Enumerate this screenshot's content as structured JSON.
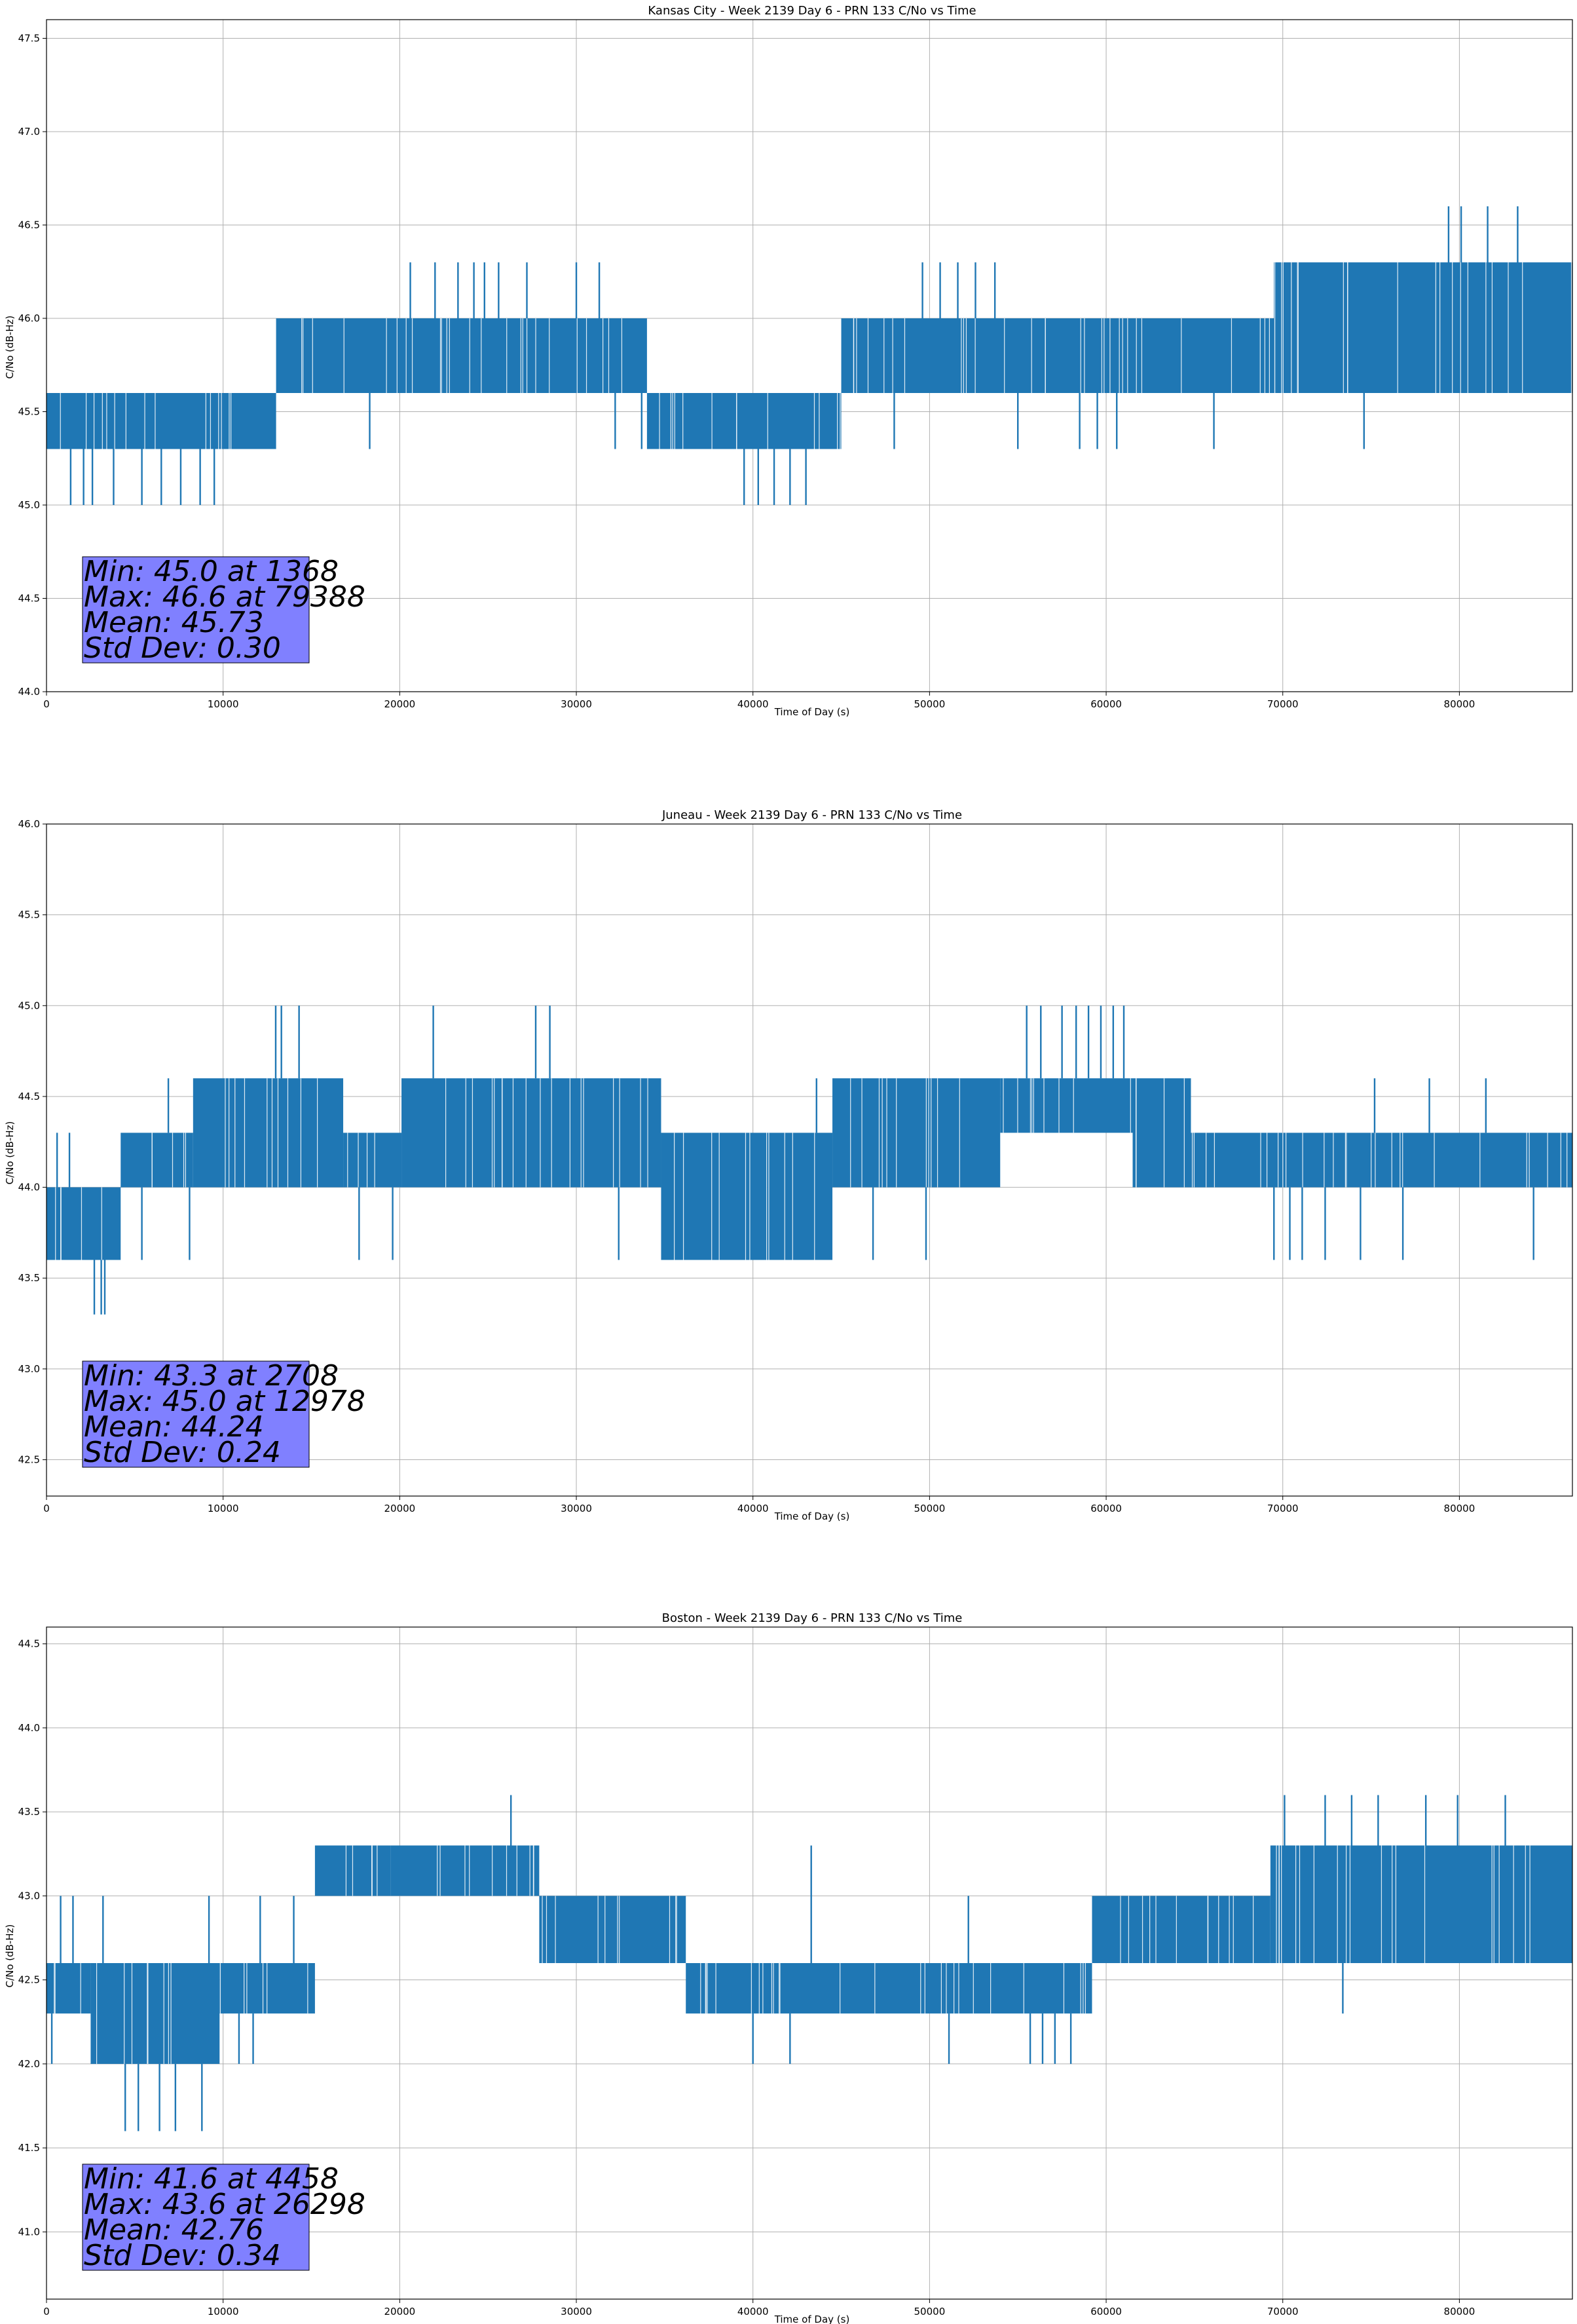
{
  "chart_data": [
    {
      "type": "line",
      "title": "Kansas City - Week 2139 Day 6 - PRN 133 C/No vs Time",
      "xlabel": "Time of Day (s)",
      "ylabel": "C/No (dB-Hz)",
      "xlim": [
        0,
        86400
      ],
      "ylim": [
        44.0,
        47.6
      ],
      "xticks": [
        0,
        10000,
        20000,
        30000,
        40000,
        50000,
        60000,
        70000,
        80000
      ],
      "yticks": [
        "44.0",
        "44.5",
        "45.0",
        "45.5",
        "46.0",
        "46.5",
        "47.0",
        "47.5"
      ],
      "grid": true,
      "color": "#1f77b4",
      "stats_box_color": "#8080ff",
      "stats": [
        "Min: 45.0 at 1368",
        "Max: 46.6 at 79388",
        "Mean: 45.73",
        "Std Dev: 0.30"
      ],
      "series": [
        {
          "name": "C/No",
          "segments": [
            {
              "x0": 0,
              "x1": 13000,
              "lo": 45.3,
              "hi": 45.6
            },
            {
              "x0": 13000,
              "x1": 34000,
              "lo": 45.6,
              "hi": 46.0
            },
            {
              "x0": 34000,
              "x1": 45000,
              "lo": 45.3,
              "hi": 45.6
            },
            {
              "x0": 45000,
              "x1": 69500,
              "lo": 45.6,
              "hi": 46.0
            },
            {
              "x0": 69500,
              "x1": 86400,
              "lo": 45.6,
              "hi": 46.3
            }
          ],
          "spikes_up": [
            {
              "x": 20600,
              "y": 46.3
            },
            {
              "x": 22000,
              "y": 46.3
            },
            {
              "x": 23300,
              "y": 46.3
            },
            {
              "x": 24200,
              "y": 46.3
            },
            {
              "x": 24800,
              "y": 46.3
            },
            {
              "x": 25600,
              "y": 46.3
            },
            {
              "x": 27200,
              "y": 46.3
            },
            {
              "x": 30000,
              "y": 46.3
            },
            {
              "x": 31300,
              "y": 46.3
            },
            {
              "x": 49600,
              "y": 46.3
            },
            {
              "x": 50600,
              "y": 46.3
            },
            {
              "x": 51600,
              "y": 46.3
            },
            {
              "x": 52600,
              "y": 46.3
            },
            {
              "x": 53700,
              "y": 46.3
            },
            {
              "x": 75100,
              "y": 46.3
            },
            {
              "x": 76600,
              "y": 46.3
            },
            {
              "x": 79388,
              "y": 46.6
            },
            {
              "x": 80100,
              "y": 46.6
            },
            {
              "x": 81600,
              "y": 46.6
            },
            {
              "x": 83300,
              "y": 46.6
            },
            {
              "x": 85000,
              "y": 46.3
            }
          ],
          "spikes_down": [
            {
              "x": 1368,
              "y": 45.0
            },
            {
              "x": 2100,
              "y": 45.0
            },
            {
              "x": 2600,
              "y": 45.0
            },
            {
              "x": 3800,
              "y": 45.0
            },
            {
              "x": 5400,
              "y": 45.0
            },
            {
              "x": 6500,
              "y": 45.0
            },
            {
              "x": 7600,
              "y": 45.0
            },
            {
              "x": 8700,
              "y": 45.0
            },
            {
              "x": 9500,
              "y": 45.0
            },
            {
              "x": 18300,
              "y": 45.3
            },
            {
              "x": 32200,
              "y": 45.3
            },
            {
              "x": 33700,
              "y": 45.3
            },
            {
              "x": 39500,
              "y": 45.0
            },
            {
              "x": 40300,
              "y": 45.0
            },
            {
              "x": 41200,
              "y": 45.0
            },
            {
              "x": 42100,
              "y": 45.0
            },
            {
              "x": 43000,
              "y": 45.0
            },
            {
              "x": 48000,
              "y": 45.3
            },
            {
              "x": 55000,
              "y": 45.3
            },
            {
              "x": 58500,
              "y": 45.3
            },
            {
              "x": 59500,
              "y": 45.3
            },
            {
              "x": 60600,
              "y": 45.3
            },
            {
              "x": 66100,
              "y": 45.3
            },
            {
              "x": 74600,
              "y": 45.3
            }
          ]
        }
      ]
    },
    {
      "type": "line",
      "title": "Juneau - Week 2139 Day 6 - PRN 133 C/No vs Time",
      "xlabel": "Time of Day (s)",
      "ylabel": "C/No (dB-Hz)",
      "xlim": [
        0,
        86400
      ],
      "ylim": [
        42.3,
        46.0
      ],
      "xticks": [
        0,
        10000,
        20000,
        30000,
        40000,
        50000,
        60000,
        70000,
        80000
      ],
      "yticks": [
        "42.5",
        "43.0",
        "43.5",
        "44.0",
        "44.5",
        "45.0",
        "45.5",
        "46.0"
      ],
      "grid": true,
      "color": "#1f77b4",
      "stats_box_color": "#8080ff",
      "stats": [
        "Min: 43.3 at 2708",
        "Max: 45.0 at 12978",
        "Mean: 44.24",
        "Std Dev: 0.24"
      ],
      "series": [
        {
          "name": "C/No",
          "segments": [
            {
              "x0": 0,
              "x1": 4200,
              "lo": 43.6,
              "hi": 44.0
            },
            {
              "x0": 4200,
              "x1": 8300,
              "lo": 44.0,
              "hi": 44.3
            },
            {
              "x0": 8300,
              "x1": 16800,
              "lo": 44.0,
              "hi": 44.6
            },
            {
              "x0": 16800,
              "x1": 20100,
              "lo": 44.0,
              "hi": 44.3
            },
            {
              "x0": 20100,
              "x1": 34800,
              "lo": 44.0,
              "hi": 44.6
            },
            {
              "x0": 34800,
              "x1": 40800,
              "lo": 43.6,
              "hi": 44.3
            },
            {
              "x0": 40800,
              "x1": 44500,
              "lo": 43.6,
              "hi": 44.3
            },
            {
              "x0": 44500,
              "x1": 54000,
              "lo": 44.0,
              "hi": 44.6
            },
            {
              "x0": 54000,
              "x1": 61500,
              "lo": 44.3,
              "hi": 44.6
            },
            {
              "x0": 61500,
              "x1": 64800,
              "lo": 44.0,
              "hi": 44.6
            },
            {
              "x0": 64800,
              "x1": 86400,
              "lo": 44.0,
              "hi": 44.3
            }
          ],
          "spikes_up": [
            {
              "x": 600,
              "y": 44.3
            },
            {
              "x": 1300,
              "y": 44.3
            },
            {
              "x": 6900,
              "y": 44.6
            },
            {
              "x": 12978,
              "y": 45.0
            },
            {
              "x": 13300,
              "y": 45.0
            },
            {
              "x": 14300,
              "y": 45.0
            },
            {
              "x": 21900,
              "y": 45.0
            },
            {
              "x": 27700,
              "y": 45.0
            },
            {
              "x": 28500,
              "y": 45.0
            },
            {
              "x": 43600,
              "y": 44.6
            },
            {
              "x": 55500,
              "y": 45.0
            },
            {
              "x": 56300,
              "y": 45.0
            },
            {
              "x": 57500,
              "y": 45.0
            },
            {
              "x": 58300,
              "y": 45.0
            },
            {
              "x": 59000,
              "y": 45.0
            },
            {
              "x": 59700,
              "y": 45.0
            },
            {
              "x": 60400,
              "y": 45.0
            },
            {
              "x": 61000,
              "y": 45.0
            },
            {
              "x": 75200,
              "y": 44.6
            },
            {
              "x": 78300,
              "y": 44.6
            },
            {
              "x": 81500,
              "y": 44.6
            }
          ],
          "spikes_down": [
            {
              "x": 2708,
              "y": 43.3
            },
            {
              "x": 3100,
              "y": 43.3
            },
            {
              "x": 3300,
              "y": 43.3
            },
            {
              "x": 5400,
              "y": 43.6
            },
            {
              "x": 8100,
              "y": 43.6
            },
            {
              "x": 17700,
              "y": 43.6
            },
            {
              "x": 19600,
              "y": 43.6
            },
            {
              "x": 32400,
              "y": 43.6
            },
            {
              "x": 38200,
              "y": 43.6
            },
            {
              "x": 43200,
              "y": 43.6
            },
            {
              "x": 46800,
              "y": 43.6
            },
            {
              "x": 49800,
              "y": 43.6
            },
            {
              "x": 69500,
              "y": 43.6
            },
            {
              "x": 70400,
              "y": 43.6
            },
            {
              "x": 71100,
              "y": 43.6
            },
            {
              "x": 72400,
              "y": 43.6
            },
            {
              "x": 74400,
              "y": 43.6
            },
            {
              "x": 76800,
              "y": 43.6
            },
            {
              "x": 84200,
              "y": 43.6
            }
          ]
        }
      ]
    },
    {
      "type": "line",
      "title": "Boston - Week 2139 Day 6 - PRN 133 C/No vs Time",
      "xlabel": "Time of Day (s)",
      "ylabel": "C/No (dB-Hz)",
      "xlim": [
        0,
        86400
      ],
      "ylim": [
        40.6,
        44.6
      ],
      "xticks": [
        0,
        10000,
        20000,
        30000,
        40000,
        50000,
        60000,
        70000,
        80000
      ],
      "yticks": [
        "41.0",
        "41.5",
        "42.0",
        "42.5",
        "43.0",
        "43.5",
        "44.0",
        "44.5"
      ],
      "grid": true,
      "color": "#1f77b4",
      "stats_box_color": "#8080ff",
      "stats": [
        "Min: 41.6 at 4458",
        "Max: 43.6 at 26298",
        "Mean: 42.76",
        "Std Dev: 0.34"
      ],
      "series": [
        {
          "name": "C/No",
          "segments": [
            {
              "x0": 0,
              "x1": 2500,
              "lo": 42.3,
              "hi": 42.6
            },
            {
              "x0": 2500,
              "x1": 9800,
              "lo": 42.0,
              "hi": 42.6
            },
            {
              "x0": 9800,
              "x1": 15200,
              "lo": 42.3,
              "hi": 42.6
            },
            {
              "x0": 15200,
              "x1": 19500,
              "lo": 43.0,
              "hi": 43.3
            },
            {
              "x0": 19500,
              "x1": 27900,
              "lo": 43.0,
              "hi": 43.3
            },
            {
              "x0": 27900,
              "x1": 36200,
              "lo": 42.6,
              "hi": 43.0
            },
            {
              "x0": 36200,
              "x1": 50800,
              "lo": 42.3,
              "hi": 42.6
            },
            {
              "x0": 50800,
              "x1": 59200,
              "lo": 42.3,
              "hi": 42.6
            },
            {
              "x0": 59200,
              "x1": 69300,
              "lo": 42.6,
              "hi": 43.0
            },
            {
              "x0": 69300,
              "x1": 86400,
              "lo": 42.6,
              "hi": 43.3
            }
          ],
          "spikes_up": [
            {
              "x": 800,
              "y": 43.0
            },
            {
              "x": 1500,
              "y": 43.0
            },
            {
              "x": 3200,
              "y": 43.0
            },
            {
              "x": 9200,
              "y": 43.0
            },
            {
              "x": 12100,
              "y": 43.0
            },
            {
              "x": 14000,
              "y": 43.0
            },
            {
              "x": 26298,
              "y": 43.6
            },
            {
              "x": 34800,
              "y": 43.0
            },
            {
              "x": 43300,
              "y": 43.3
            },
            {
              "x": 52200,
              "y": 43.0
            },
            {
              "x": 70100,
              "y": 43.6
            },
            {
              "x": 72400,
              "y": 43.6
            },
            {
              "x": 73900,
              "y": 43.6
            },
            {
              "x": 75400,
              "y": 43.6
            },
            {
              "x": 78100,
              "y": 43.6
            },
            {
              "x": 79900,
              "y": 43.6
            },
            {
              "x": 82600,
              "y": 43.6
            }
          ],
          "spikes_down": [
            {
              "x": 300,
              "y": 42.0
            },
            {
              "x": 4458,
              "y": 41.6
            },
            {
              "x": 5200,
              "y": 41.6
            },
            {
              "x": 6400,
              "y": 41.6
            },
            {
              "x": 7300,
              "y": 41.6
            },
            {
              "x": 8800,
              "y": 41.6
            },
            {
              "x": 10900,
              "y": 42.0
            },
            {
              "x": 11700,
              "y": 42.0
            },
            {
              "x": 40000,
              "y": 42.0
            },
            {
              "x": 42100,
              "y": 42.0
            },
            {
              "x": 51100,
              "y": 42.0
            },
            {
              "x": 55700,
              "y": 42.0
            },
            {
              "x": 56400,
              "y": 42.0
            },
            {
              "x": 57100,
              "y": 42.0
            },
            {
              "x": 58000,
              "y": 42.0
            },
            {
              "x": 73400,
              "y": 42.3
            },
            {
              "x": 84100,
              "y": 42.6
            }
          ]
        }
      ]
    }
  ]
}
